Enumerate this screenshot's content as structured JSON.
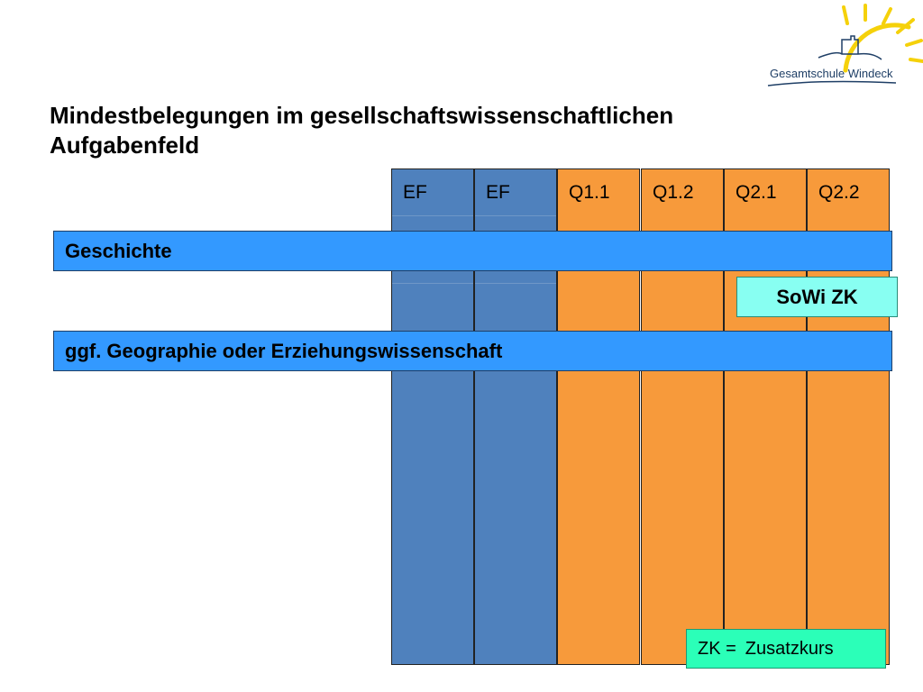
{
  "logo": {
    "text": "Gesamtschule  Windeck"
  },
  "title": {
    "line1": "Mindestbelegungen im gesellschaftswissenschaftlichen",
    "line2": "Aufgabenfeld"
  },
  "columns": [
    {
      "label": "EF",
      "color": "#4f81bd"
    },
    {
      "label": "EF",
      "color": "#4f81bd"
    },
    {
      "label": "Q1.1",
      "color": "#f79a3b"
    },
    {
      "label": "Q1.2",
      "color": "#f79a3b"
    },
    {
      "label": "Q2.1",
      "color": "#f79a3b"
    },
    {
      "label": "Q2.2",
      "color": "#f79a3b"
    }
  ],
  "bars": {
    "geschichte": "Geschichte",
    "sowi": "SoWi ZK",
    "geo": "ggf. Geographie oder Erziehungswissenschaft"
  },
  "legend": {
    "abbr": "ZK =",
    "meaning": "Zusatzkurs"
  }
}
